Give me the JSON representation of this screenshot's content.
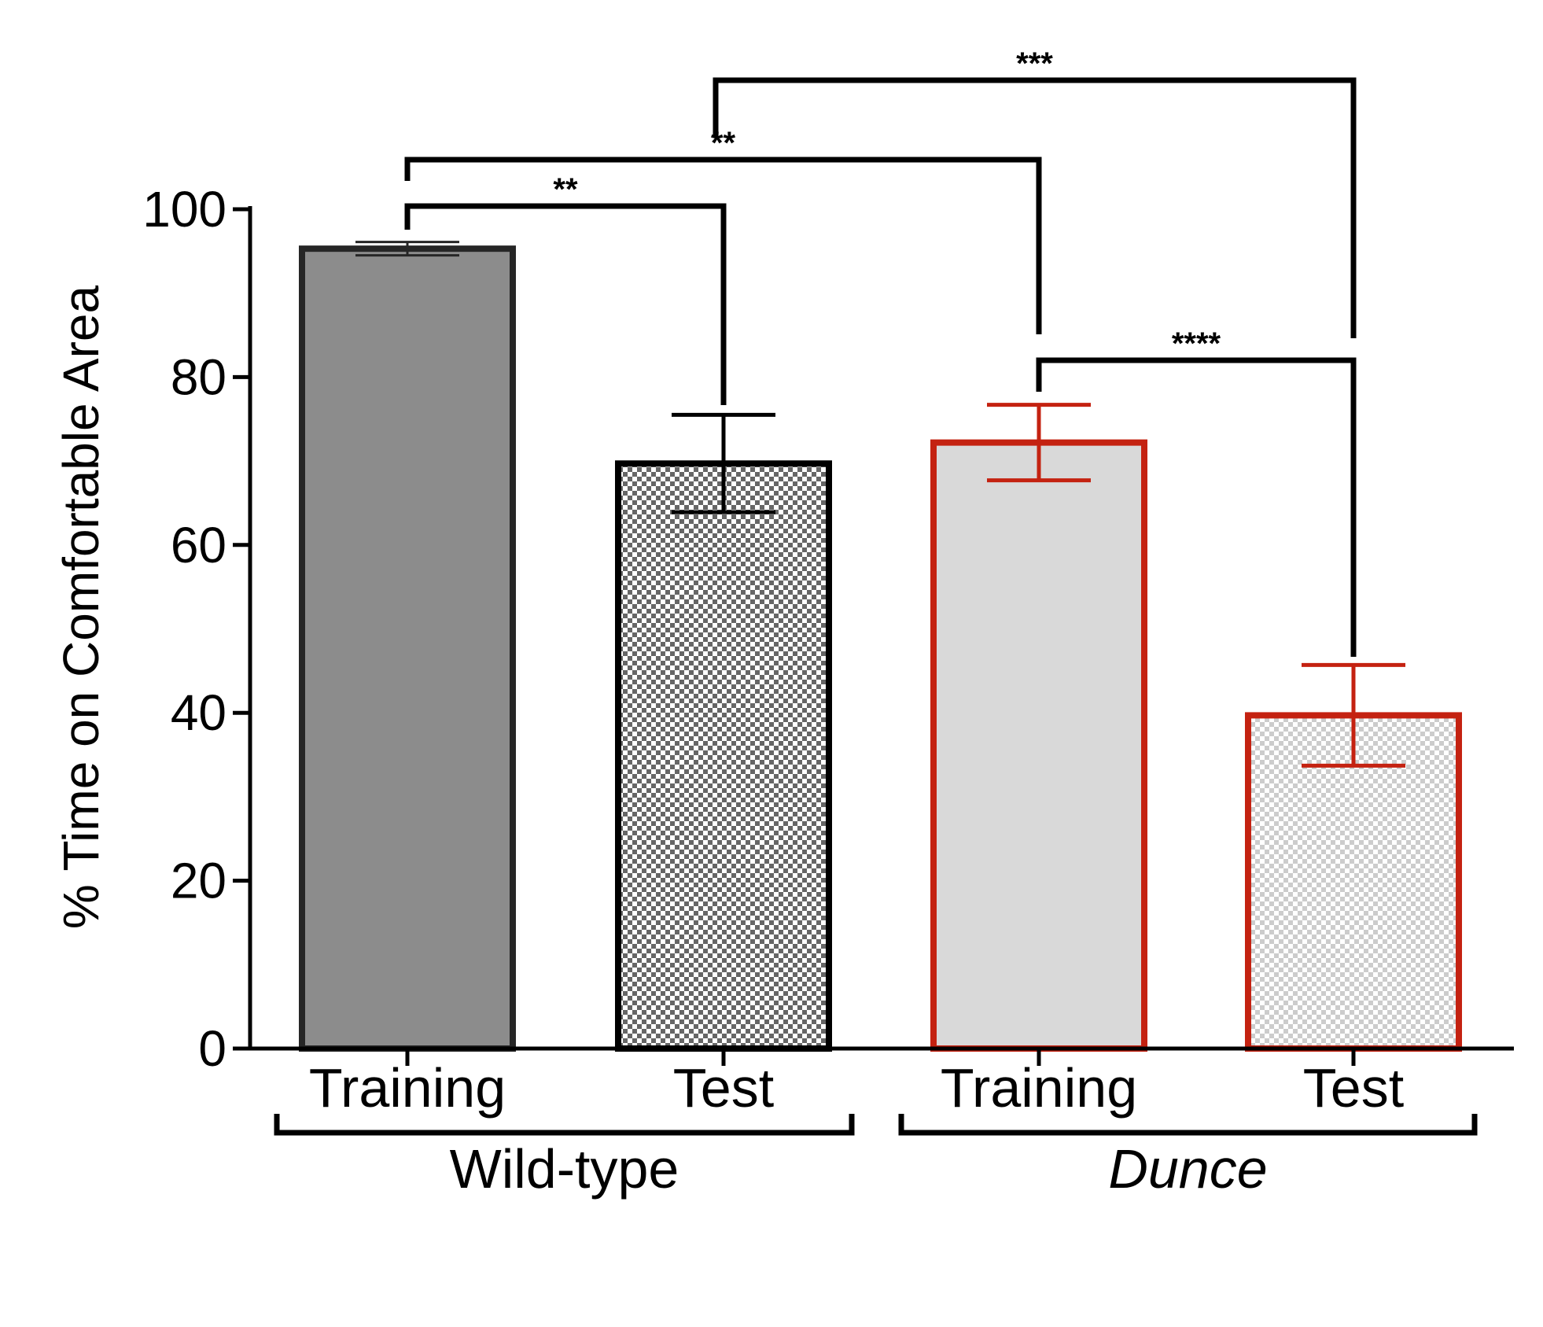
{
  "chart_data": {
    "type": "bar",
    "title": "",
    "xlabel": "",
    "ylabel": "% Time on Comfortable Area",
    "ylim": [
      0,
      100
    ],
    "yticks": [
      0,
      20,
      40,
      60,
      80,
      100
    ],
    "yticks_text": [
      "0",
      "20",
      "40",
      "60",
      "80",
      "100"
    ],
    "grid": false,
    "categories": [
      "Training",
      "Test",
      "Training",
      "Test"
    ],
    "values": [
      95.3,
      69.7,
      72.2,
      39.7
    ],
    "errors": [
      0.8,
      5.8,
      4.5,
      6.0
    ],
    "groups": [
      {
        "label": "Wild-type",
        "italic": false,
        "members": [
          0,
          1
        ]
      },
      {
        "label": "Dunce",
        "italic": true,
        "members": [
          2,
          3
        ]
      }
    ],
    "bar_styles": [
      {
        "fill": "#8c8c8c",
        "stroke": "#262626",
        "pattern": "solid"
      },
      {
        "fill": "#ffffff",
        "stroke": "#000000",
        "pattern": "checker",
        "checker_color": "#666666"
      },
      {
        "fill": "#d9d9d9",
        "stroke": "#c42211",
        "pattern": "solid"
      },
      {
        "fill": "#ffffff",
        "stroke": "#c42211",
        "pattern": "checker",
        "checker_color": "#cccccc"
      }
    ],
    "significance": [
      {
        "from": 0,
        "to": 1,
        "label": "**",
        "level": 1
      },
      {
        "from": 0,
        "to": 2,
        "label": "**",
        "level": 2
      },
      {
        "from": 1,
        "to": 3,
        "label": "***",
        "level": 3
      },
      {
        "from": 2,
        "to": 3,
        "label": "****",
        "level": 0
      }
    ]
  }
}
